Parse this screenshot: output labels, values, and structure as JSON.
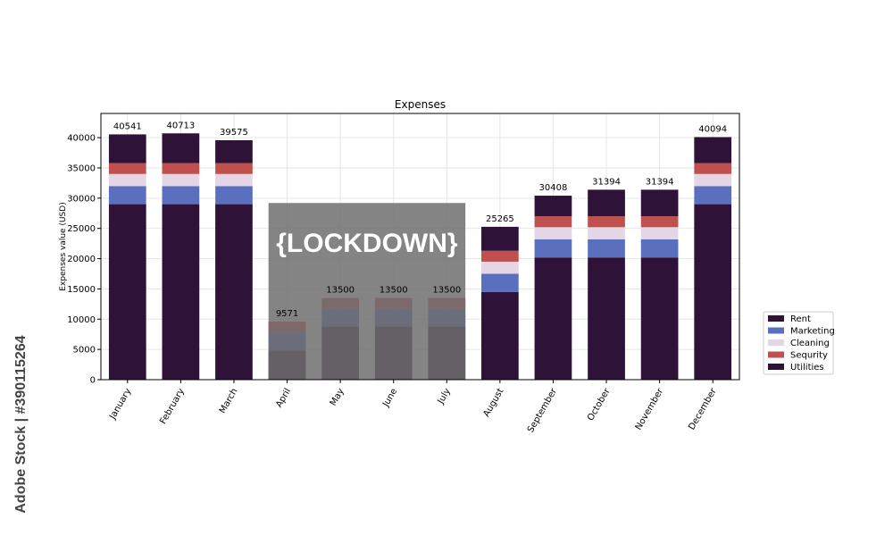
{
  "chart_data": {
    "type": "bar",
    "stacked": true,
    "title": "Expenses",
    "xlabel": "",
    "ylabel": "Expenses value (USD)",
    "ylim": [
      0,
      44000
    ],
    "yticks": [
      0,
      5000,
      10000,
      15000,
      20000,
      25000,
      30000,
      35000,
      40000
    ],
    "grid": true,
    "legend_position": "right",
    "categories": [
      "January",
      "February",
      "March",
      "April",
      "May",
      "June",
      "July",
      "August",
      "September",
      "October",
      "November",
      "December"
    ],
    "totals": [
      40541,
      40713,
      39575,
      9571,
      13500,
      13500,
      13500,
      25265,
      30408,
      31394,
      31394,
      40094
    ],
    "series": [
      {
        "name": "Utilities",
        "color": "#2e1238",
        "values": [
          29000,
          29000,
          29000,
          4800,
          8800,
          8800,
          8800,
          14500,
          20200,
          20200,
          20200,
          29000
        ]
      },
      {
        "name": "Marketing",
        "color": "#5a6fbd",
        "values": [
          3000,
          3000,
          3000,
          3000,
          2900,
          2900,
          2900,
          3000,
          3000,
          3000,
          3000,
          3000
        ]
      },
      {
        "name": "Cleaning",
        "color": "#e4d6e4",
        "values": [
          2000,
          2000,
          2000,
          0,
          0,
          0,
          0,
          2000,
          2000,
          2000,
          2000,
          2000
        ]
      },
      {
        "name": "Sequrity",
        "color": "#c0504e",
        "values": [
          1800,
          1800,
          1800,
          1800,
          1800,
          1800,
          1800,
          1800,
          1800,
          1800,
          1800,
          1800
        ]
      },
      {
        "name": "Rent",
        "color": "#2e1238",
        "values": [
          4741,
          4913,
          3775,
          -29,
          0,
          0,
          0,
          3965,
          3408,
          4394,
          4394,
          4294
        ]
      }
    ],
    "legend_order": [
      "Rent",
      "Marketing",
      "Cleaning",
      "Sequrity",
      "Utilities"
    ],
    "annotation": {
      "text": "{LOCKDOWN}",
      "color": "#6e6e6e",
      "start_category": "April",
      "end_category": "July",
      "top_value": 29200
    }
  },
  "watermark": {
    "side_text": "Adobe Stock | #390115264"
  }
}
